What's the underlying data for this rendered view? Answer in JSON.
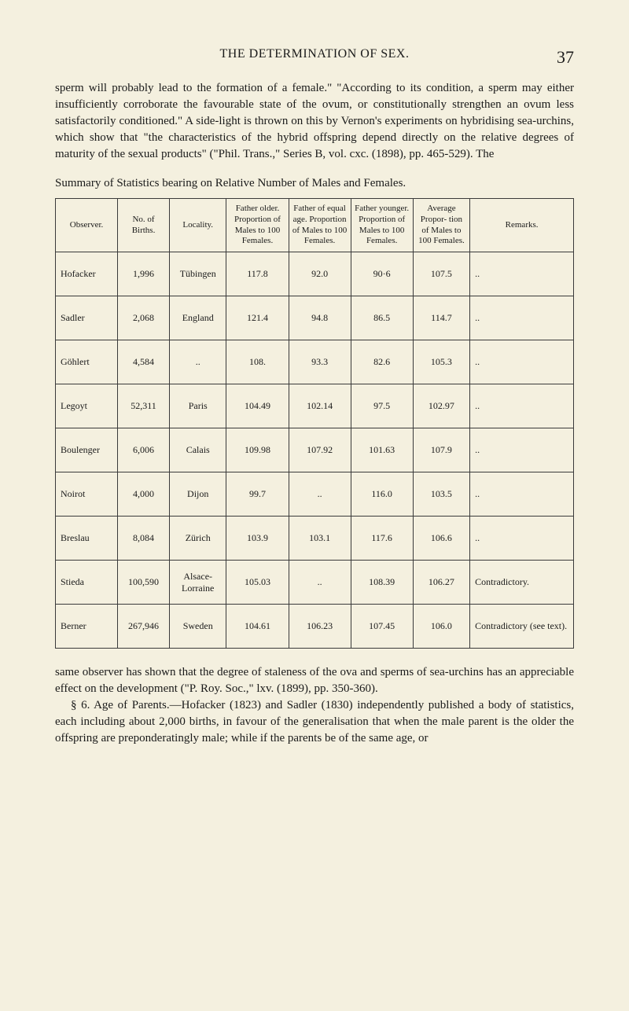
{
  "page": {
    "runningHead": "THE DETERMINATION OF SEX.",
    "pageNumber": "37"
  },
  "paragraph1": "sperm will probably lead to the formation of a female.\" \"According to its condition, a sperm may either insufficiently corroborate the favourable state of the ovum, or constitutionally strengthen an ovum less satisfactorily conditioned.\" A side-light is thrown on this by Vernon's experiments on hybridising sea-urchins, which show that \"the characteristics of the hybrid offspring depend directly on the relative degrees of maturity of the sexual products\" (\"Phil. Trans.,\" Series B, vol. cxc. (1898), pp. 465-529). The",
  "tableCaption": "Summary of Statistics bearing on Relative Number of Males and Females.",
  "table": {
    "headers": {
      "observer": "Observer.",
      "births": "No. of Births.",
      "locality": "Locality.",
      "fatherOlder": "Father older. Proportion of Males to 100 Females.",
      "fatherEqual": "Father of equal age. Proportion of Males to 100 Females.",
      "fatherYounger": "Father younger. Proportion of Males to 100 Females.",
      "average": "Average Propor- tion of Males to 100 Females.",
      "remarks": "Remarks."
    },
    "rows": [
      {
        "observer": "Hofacker",
        "births": "1,996",
        "locality": "Tübingen",
        "fatherOlder": "117.8",
        "fatherEqual": "92.0",
        "fatherYounger": "90·6",
        "average": "107.5",
        "remarks": ".."
      },
      {
        "observer": "Sadler",
        "births": "2,068",
        "locality": "England",
        "fatherOlder": "121.4",
        "fatherEqual": "94.8",
        "fatherYounger": "86.5",
        "average": "114.7",
        "remarks": ".."
      },
      {
        "observer": "Göhlert",
        "births": "4,584",
        "locality": "..",
        "fatherOlder": "108.",
        "fatherEqual": "93.3",
        "fatherYounger": "82.6",
        "average": "105.3",
        "remarks": ".."
      },
      {
        "observer": "Legoyt",
        "births": "52,311",
        "locality": "Paris",
        "fatherOlder": "104.49",
        "fatherEqual": "102.14",
        "fatherYounger": "97.5",
        "average": "102.97",
        "remarks": ".."
      },
      {
        "observer": "Boulenger",
        "births": "6,006",
        "locality": "Calais",
        "fatherOlder": "109.98",
        "fatherEqual": "107.92",
        "fatherYounger": "101.63",
        "average": "107.9",
        "remarks": ".."
      },
      {
        "observer": "Noirot",
        "births": "4,000",
        "locality": "Dijon",
        "fatherOlder": "99.7",
        "fatherEqual": "..",
        "fatherYounger": "116.0",
        "average": "103.5",
        "remarks": ".."
      },
      {
        "observer": "Breslau",
        "births": "8,084",
        "locality": "Zürich",
        "fatherOlder": "103.9",
        "fatherEqual": "103.1",
        "fatherYounger": "117.6",
        "average": "106.6",
        "remarks": ".."
      },
      {
        "observer": "Stieda",
        "births": "100,590",
        "locality": "Alsace- Lorraine",
        "fatherOlder": "105.03",
        "fatherEqual": "..",
        "fatherYounger": "108.39",
        "average": "106.27",
        "remarks": "Contradictory."
      },
      {
        "observer": "Berner",
        "births": "267,946",
        "locality": "Sweden",
        "fatherOlder": "104.61",
        "fatherEqual": "106.23",
        "fatherYounger": "107.45",
        "average": "106.0",
        "remarks": "Contradictory (see text)."
      }
    ],
    "colWidths": [
      "12%",
      "10%",
      "11%",
      "12%",
      "12%",
      "12%",
      "11%",
      "20%"
    ]
  },
  "paragraph2": "same observer has shown that the degree of staleness of the ova and sperms of sea-urchins has an appreciable effect on the development (\"P. Roy. Soc.,\" lxv. (1899), pp. 350-360).",
  "paragraph3": "§ 6. Age of Parents.—Hofacker (1823) and Sadler (1830) independently published a body of statistics, each including about 2,000 births, in favour of the generalisation that when the male parent is the older the offspring are preponderatingly male; while if the parents be of the same age, or"
}
